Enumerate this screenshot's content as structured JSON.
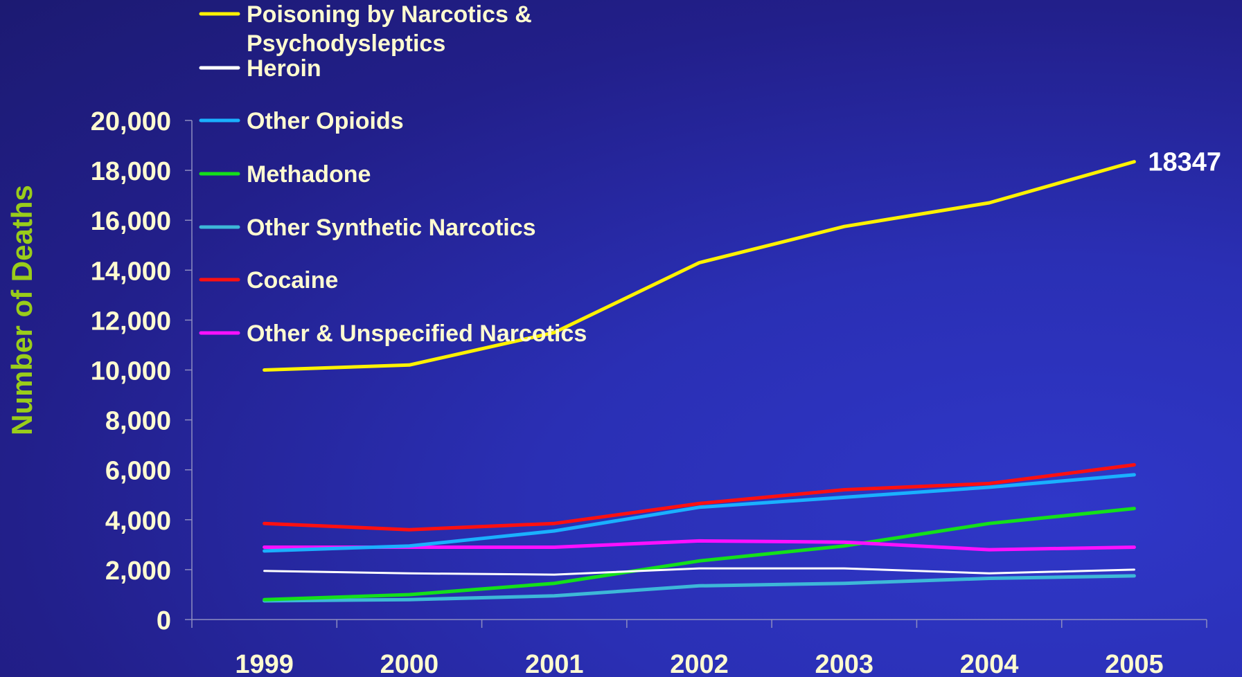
{
  "chart_data": {
    "type": "line",
    "title": "",
    "xlabel": "",
    "ylabel": "Number of Deaths",
    "ylim": [
      0,
      20000
    ],
    "yticks": [
      0,
      2000,
      4000,
      6000,
      8000,
      10000,
      12000,
      14000,
      16000,
      18000,
      20000
    ],
    "ytick_labels": [
      "0",
      "2,000",
      "4,000",
      "6,000",
      "8,000",
      "10,000",
      "12,000",
      "14,000",
      "16,000",
      "18,000",
      "20,000"
    ],
    "categories": [
      "1999",
      "2000",
      "2001",
      "2002",
      "2003",
      "2004",
      "2005"
    ],
    "grid": false,
    "legend_position": "top-left",
    "series": [
      {
        "name": "Poisoning by Narcotics & Psychodysleptics",
        "legend_lines": [
          "Poisoning by Narcotics &",
          "Psychodysleptics"
        ],
        "color": "#fff200",
        "stroke": 5,
        "values": [
          10000,
          10200,
          11500,
          14300,
          15750,
          16700,
          18347
        ]
      },
      {
        "name": "Heroin",
        "legend_lines": [
          "Heroin"
        ],
        "color": "#ffffff",
        "stroke": 3,
        "values": [
          1950,
          1850,
          1800,
          2050,
          2050,
          1850,
          2000
        ]
      },
      {
        "name": "Other Opioids",
        "legend_lines": [
          "Other Opioids"
        ],
        "color": "#1ab0ff",
        "stroke": 5,
        "values": [
          2750,
          2950,
          3550,
          4500,
          4900,
          5300,
          5800
        ]
      },
      {
        "name": "Methadone",
        "legend_lines": [
          "Methadone"
        ],
        "color": "#14e01a",
        "stroke": 5,
        "values": [
          800,
          1000,
          1450,
          2350,
          2950,
          3850,
          4450
        ]
      },
      {
        "name": "Other Synthetic Narcotics",
        "legend_lines": [
          "Other Synthetic Narcotics"
        ],
        "color": "#3db8d8",
        "stroke": 5,
        "values": [
          750,
          800,
          950,
          1350,
          1450,
          1650,
          1750
        ]
      },
      {
        "name": "Cocaine",
        "legend_lines": [
          "Cocaine"
        ],
        "color": "#ff1010",
        "stroke": 5,
        "values": [
          3850,
          3600,
          3850,
          4650,
          5200,
          5450,
          6200
        ]
      },
      {
        "name": "Other & Unspecified Narcotics",
        "legend_lines": [
          "Other & Unspecified Narcotics"
        ],
        "color": "#ff10ff",
        "stroke": 5,
        "values": [
          2900,
          2900,
          2900,
          3150,
          3100,
          2800,
          2900
        ]
      }
    ],
    "annotations": [
      {
        "text": "18347",
        "series": 0,
        "category": "2005"
      }
    ],
    "colors": {
      "tick_text": "#fffbd0",
      "axis_title": "#9acd1a",
      "axis_line": "#8d8dc0",
      "legend_text": "#fffbd0",
      "annotation": "#ffffff"
    }
  }
}
